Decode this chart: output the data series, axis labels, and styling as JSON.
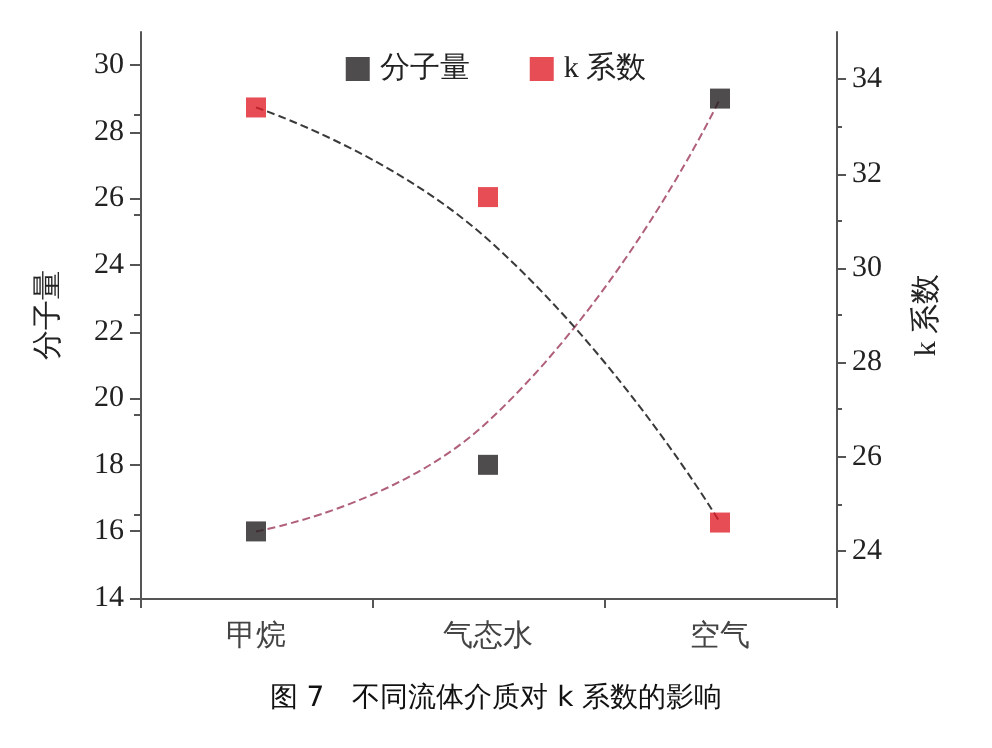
{
  "chart_data": {
    "type": "scatter",
    "ylabel": "分子量",
    "y2label": "k 系数",
    "categories": [
      "甲烷",
      "气态水",
      "空气"
    ],
    "series": [
      {
        "name": "分子量",
        "color": "#231f20",
        "values": [
          16,
          18,
          29
        ],
        "marker": "square"
      },
      {
        "name": "k 系数",
        "color": "#e0202a",
        "values": [
          33.4,
          31.5,
          24.6
        ],
        "axis": "y2",
        "marker": "square"
      },
      {
        "type": "line",
        "color": "#b0607a",
        "x": [
          "甲烷",
          "气态水",
          "空气"
        ],
        "values": [
          16,
          19.3,
          29
        ],
        "line_style": "dashed",
        "marker": "none"
      },
      {
        "type": "line",
        "color": "#3a3a3a",
        "x": [
          "甲烷",
          "气态水",
          "空气"
        ],
        "values": [
          33.4,
          30.6,
          24.6
        ],
        "axis": "y2",
        "line_style": "dashed",
        "marker": "none"
      }
    ],
    "ylim": [
      14,
      31
    ],
    "yticks": [
      14,
      16,
      18,
      20,
      22,
      24,
      26,
      28,
      30
    ],
    "y2lim": [
      23,
      35
    ],
    "y2ticks": [
      24,
      26,
      28,
      30,
      32,
      34
    ],
    "legend": "top",
    "grid": false,
    "annotations": [
      "图 7　不同流体介质对 k 系数的影响"
    ]
  }
}
